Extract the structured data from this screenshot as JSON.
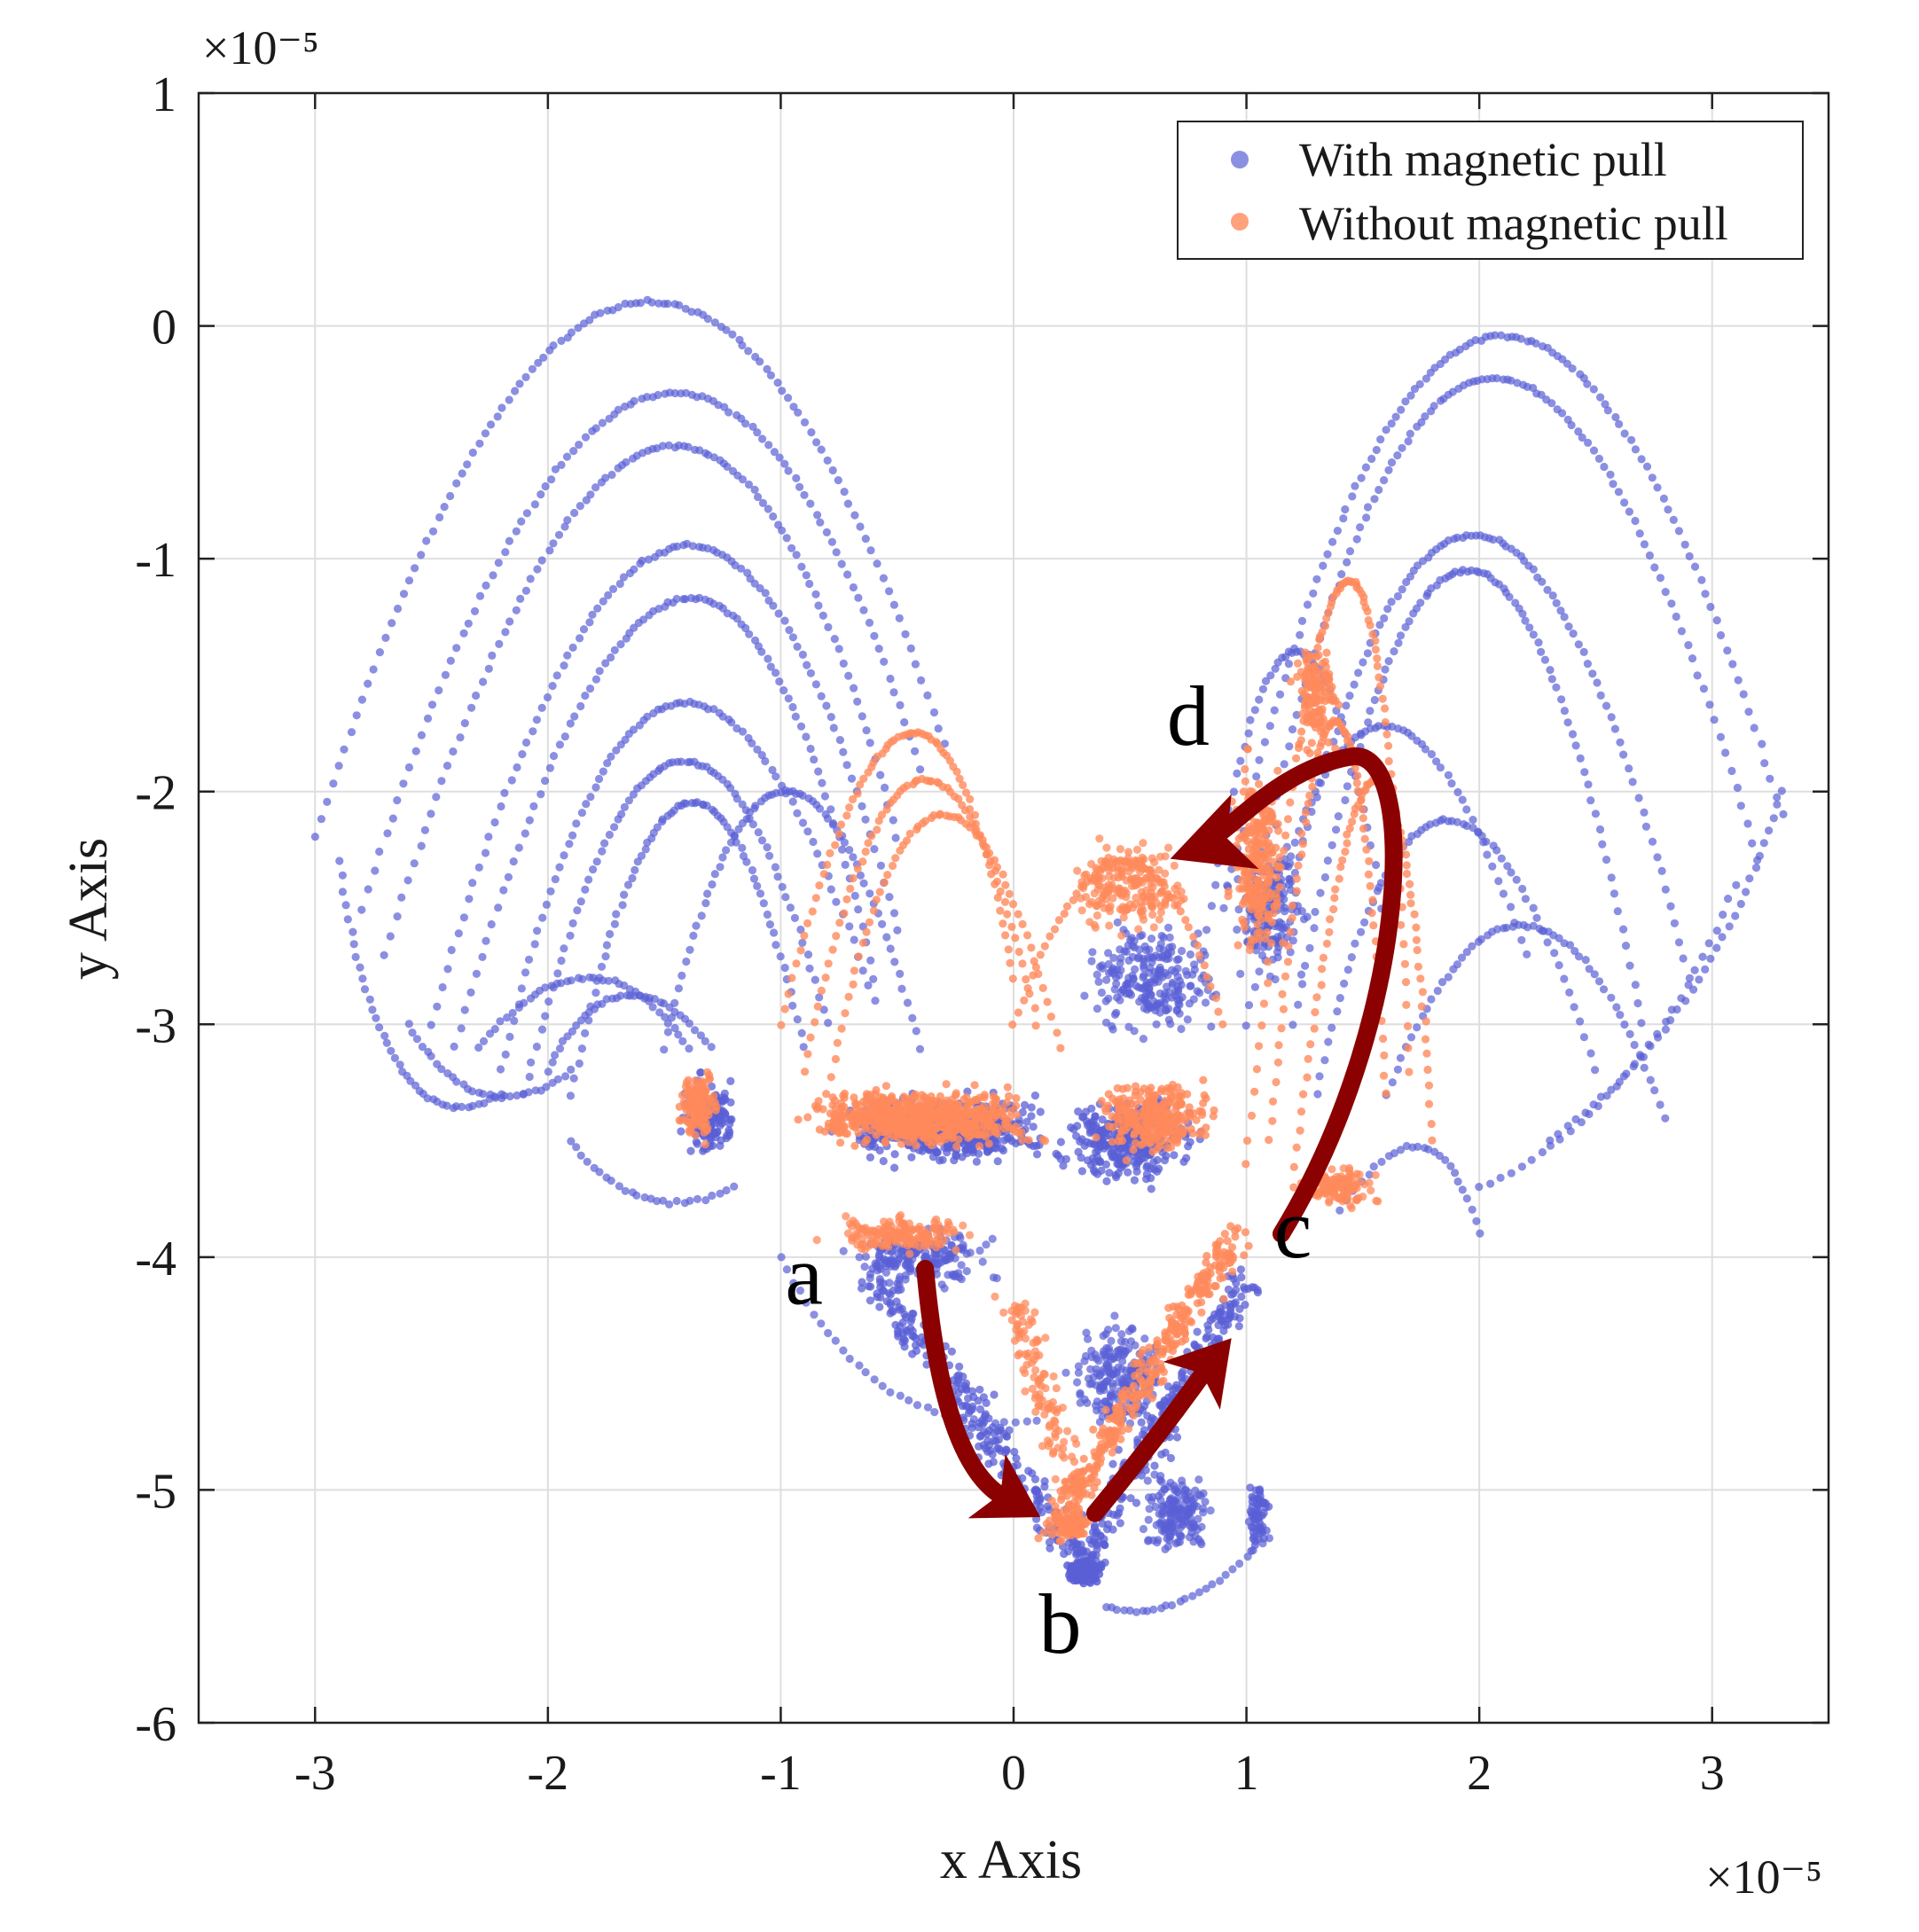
{
  "chart_data": {
    "type": "scatter",
    "title": "",
    "xlabel": "x Axis",
    "ylabel": "y Axis",
    "x_exponent_label": "×10⁻⁵",
    "y_exponent_label": "×10⁻⁵",
    "xlim": [
      -3.5,
      3.5
    ],
    "ylim": [
      -6,
      1
    ],
    "grid": true,
    "legend_position": "top-right",
    "x_ticks": [
      -3,
      -2,
      -1,
      0,
      1,
      2,
      3
    ],
    "x_tick_labels": [
      "-3",
      "-2",
      "-1",
      "0",
      "1",
      "2",
      "3"
    ],
    "y_ticks": [
      1,
      0,
      -1,
      -2,
      -3,
      -4,
      -5,
      -6
    ],
    "y_tick_labels": [
      "1",
      "0",
      "-1",
      "-2",
      "-3",
      "-4",
      "-5",
      "-6"
    ],
    "series": [
      {
        "name": "With magnetic pull",
        "color": "#5a5fd6",
        "description_points": [
          [
            -1.6,
            0.0
          ],
          [
            -1.5,
            -0.3
          ],
          [
            -1.4,
            -0.5
          ],
          [
            -1.5,
            -1.1
          ],
          [
            -1.4,
            -1.4
          ],
          [
            -1.0,
            -1.5
          ],
          [
            -2.9,
            -2.0
          ],
          [
            -2.5,
            -3.0
          ],
          [
            -1.7,
            -2.8
          ],
          [
            1.95,
            0.1
          ],
          [
            1.95,
            -0.5
          ],
          [
            1.2,
            -1.1
          ],
          [
            3.3,
            -2.0
          ],
          [
            2.7,
            -2.8
          ],
          [
            0.3,
            -5.3
          ],
          [
            0.5,
            -5.5
          ],
          [
            1.0,
            -5.2
          ]
        ]
      },
      {
        "name": "Without magnetic pull",
        "color": "#ff8a5b",
        "description_points": [
          [
            -0.4,
            -1.8
          ],
          [
            1.5,
            -0.95
          ],
          [
            1.3,
            -1.3
          ],
          [
            -1.5,
            -3.0
          ],
          [
            0.2,
            -5.2
          ],
          [
            0.9,
            -4.0
          ]
        ]
      }
    ],
    "annotations": [
      {
        "label": "a",
        "x": -0.9,
        "y": -4.2
      },
      {
        "label": "b",
        "x": 0.2,
        "y": -5.7
      },
      {
        "label": "c",
        "x": 1.2,
        "y": -4.0
      },
      {
        "label": "d",
        "x": 0.75,
        "y": -1.8
      }
    ],
    "arrows": [
      {
        "from": "a",
        "to": "b",
        "color": "#8b0000"
      },
      {
        "from": "b",
        "to": "c",
        "color": "#8b0000"
      },
      {
        "from": "c",
        "to": "d",
        "color": "#8b0000"
      }
    ]
  },
  "legend": {
    "items": [
      {
        "label": "With magnetic pull",
        "color": "#5a5fd6"
      },
      {
        "label": "Without magnetic pull",
        "color": "#ff8a5b"
      }
    ]
  },
  "colors": {
    "arrow": "#8b0000",
    "series_blue": "#5a5fd6",
    "series_orange": "#ff8a5b"
  }
}
